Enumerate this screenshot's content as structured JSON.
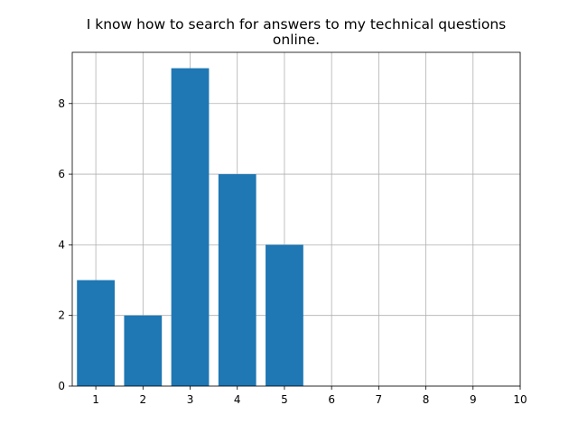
{
  "chart_data": {
    "type": "bar",
    "title_lines": [
      "I know how to search for answers to my technical questions",
      "online."
    ],
    "xlabel": "",
    "ylabel": "",
    "categories": [
      1,
      2,
      3,
      4,
      5
    ],
    "values": [
      3,
      2,
      9,
      6,
      4
    ],
    "bar_width": 0.8,
    "xlim": [
      0.5,
      10
    ],
    "ylim": [
      0,
      9.45
    ],
    "xticks": [
      1,
      2,
      3,
      4,
      5,
      6,
      7,
      8,
      9,
      10
    ],
    "yticks": [
      0,
      2,
      4,
      6,
      8
    ],
    "grid": true,
    "legend": "none",
    "bar_color": "#1f77b4",
    "grid_color": "#b0b0b0"
  }
}
